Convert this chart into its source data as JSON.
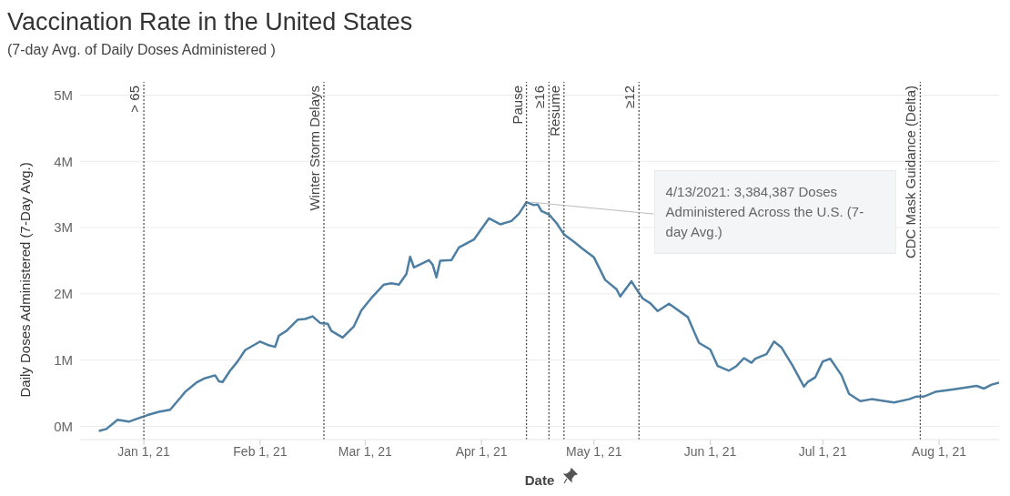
{
  "chart_data": {
    "type": "line",
    "title": "Vaccination Rate in the United States",
    "subtitle": "(7-day Avg. of Daily Doses Administered )",
    "xlabel": "Date",
    "ylabel": "Daily Doses Administered (7-Day Avg.)",
    "x": [
      "2020-12-20",
      "2020-12-22",
      "2020-12-25",
      "2020-12-28",
      "2020-12-30",
      "2021-01-02",
      "2021-01-05",
      "2021-01-08",
      "2021-01-11",
      "2021-01-12",
      "2021-01-15",
      "2021-01-17",
      "2021-01-20",
      "2021-01-21",
      "2021-01-22",
      "2021-01-24",
      "2021-01-26",
      "2021-01-28",
      "2021-02-01",
      "2021-02-03",
      "2021-02-05",
      "2021-02-06",
      "2021-02-08",
      "2021-02-11",
      "2021-02-13",
      "2021-02-15",
      "2021-02-17",
      "2021-02-19",
      "2021-02-20",
      "2021-02-23",
      "2021-02-26",
      "2021-02-28",
      "2021-03-03",
      "2021-03-06",
      "2021-03-08",
      "2021-03-10",
      "2021-03-12",
      "2021-03-13",
      "2021-03-14",
      "2021-03-18",
      "2021-03-19",
      "2021-03-20",
      "2021-03-21",
      "2021-03-24",
      "2021-03-26",
      "2021-03-30",
      "2021-04-03",
      "2021-04-06",
      "2021-04-09",
      "2021-04-11",
      "2021-04-13",
      "2021-04-15",
      "2021-04-16",
      "2021-04-17",
      "2021-04-19",
      "2021-04-21",
      "2021-04-23",
      "2021-04-26",
      "2021-04-28",
      "2021-05-01",
      "2021-05-04",
      "2021-05-07",
      "2021-05-08",
      "2021-05-11",
      "2021-05-12",
      "2021-05-14",
      "2021-05-16",
      "2021-05-18",
      "2021-05-21",
      "2021-05-26",
      "2021-05-29",
      "2021-06-01",
      "2021-06-03",
      "2021-06-06",
      "2021-06-08",
      "2021-06-10",
      "2021-06-12",
      "2021-06-13",
      "2021-06-16",
      "2021-06-18",
      "2021-06-20",
      "2021-06-23",
      "2021-06-26",
      "2021-06-27",
      "2021-06-29",
      "2021-07-01",
      "2021-07-03",
      "2021-07-06",
      "2021-07-08",
      "2021-07-11",
      "2021-07-14",
      "2021-07-20",
      "2021-07-24",
      "2021-07-26",
      "2021-07-28",
      "2021-07-31",
      "2021-08-05",
      "2021-08-11",
      "2021-08-13",
      "2021-08-15",
      "2021-08-17"
    ],
    "series": [
      {
        "color": "#4e7fa3",
        "values": [
          -70000,
          -40000,
          100000,
          70000,
          110000,
          170000,
          220000,
          250000,
          450000,
          520000,
          660000,
          720000,
          770000,
          680000,
          670000,
          840000,
          980000,
          1150000,
          1280000,
          1230000,
          1200000,
          1370000,
          1440000,
          1610000,
          1620000,
          1660000,
          1560000,
          1550000,
          1440000,
          1340000,
          1510000,
          1750000,
          1960000,
          2140000,
          2160000,
          2140000,
          2300000,
          2560000,
          2400000,
          2510000,
          2440000,
          2250000,
          2500000,
          2510000,
          2700000,
          2820000,
          3140000,
          3050000,
          3100000,
          3210000,
          3384387,
          3340000,
          3350000,
          3250000,
          3200000,
          3070000,
          2900000,
          2770000,
          2680000,
          2550000,
          2210000,
          2070000,
          1960000,
          2190000,
          2100000,
          1930000,
          1860000,
          1740000,
          1850000,
          1650000,
          1260000,
          1160000,
          910000,
          840000,
          910000,
          1030000,
          960000,
          1020000,
          1090000,
          1280000,
          1190000,
          910000,
          600000,
          670000,
          740000,
          980000,
          1020000,
          770000,
          490000,
          380000,
          410000,
          360000,
          410000,
          450000,
          450000,
          520000,
          560000,
          610000,
          570000,
          630000,
          660000
        ]
      }
    ],
    "xlim": [
      "2020-12-15",
      "2021-08-17"
    ],
    "xticks": [
      {
        "value": "2021-01-01",
        "label": "Jan 1, 21"
      },
      {
        "value": "2021-02-01",
        "label": "Feb 1, 21"
      },
      {
        "value": "2021-03-01",
        "label": "Mar 1, 21"
      },
      {
        "value": "2021-04-01",
        "label": "Apr 1, 21"
      },
      {
        "value": "2021-05-01",
        "label": "May 1, 21"
      },
      {
        "value": "2021-06-01",
        "label": "Jun 1, 21"
      },
      {
        "value": "2021-07-01",
        "label": "Jul 1, 21"
      },
      {
        "value": "2021-08-01",
        "label": "Aug 1, 21"
      }
    ],
    "ylim": [
      -200000,
      5200000
    ],
    "yticks": [
      {
        "value": 0,
        "label": "0M"
      },
      {
        "value": 1000000,
        "label": "1M"
      },
      {
        "value": 2000000,
        "label": "2M"
      },
      {
        "value": 3000000,
        "label": "3M"
      },
      {
        "value": 4000000,
        "label": "4M"
      },
      {
        "value": 5000000,
        "label": "5M"
      }
    ],
    "grid": "y",
    "legend": false,
    "marker": "none",
    "line_style": "solid",
    "ref_lines": [
      {
        "axis": "x",
        "value": "2021-01-01",
        "label": "> 65",
        "line_style": "dotted",
        "color": "#555555"
      },
      {
        "axis": "x",
        "value": "2021-02-18",
        "label": "Winter Storm Delays",
        "line_style": "dotted",
        "color": "#555555"
      },
      {
        "axis": "x",
        "value": "2021-04-13",
        "label": "Pause",
        "line_style": "dotted",
        "color": "#555555"
      },
      {
        "axis": "x",
        "value": "2021-04-19",
        "label": "≥16",
        "line_style": "dotted",
        "color": "#555555"
      },
      {
        "axis": "x",
        "value": "2021-04-23",
        "label": "Resume",
        "line_style": "dotted",
        "color": "#555555"
      },
      {
        "axis": "x",
        "value": "2021-05-13",
        "label": "≥12",
        "line_style": "dotted",
        "color": "#555555"
      },
      {
        "axis": "x",
        "value": "2021-07-27",
        "label": "CDC Mask Guidance (Delta)",
        "line_style": "dotted",
        "color": "#555555"
      }
    ],
    "annotations": [
      {
        "text": "4/13/2021: 3,384,387 Doses Administered Across the U.S. (7-day Avg.)",
        "x": "2021-04-13",
        "y": 3384387
      }
    ]
  }
}
